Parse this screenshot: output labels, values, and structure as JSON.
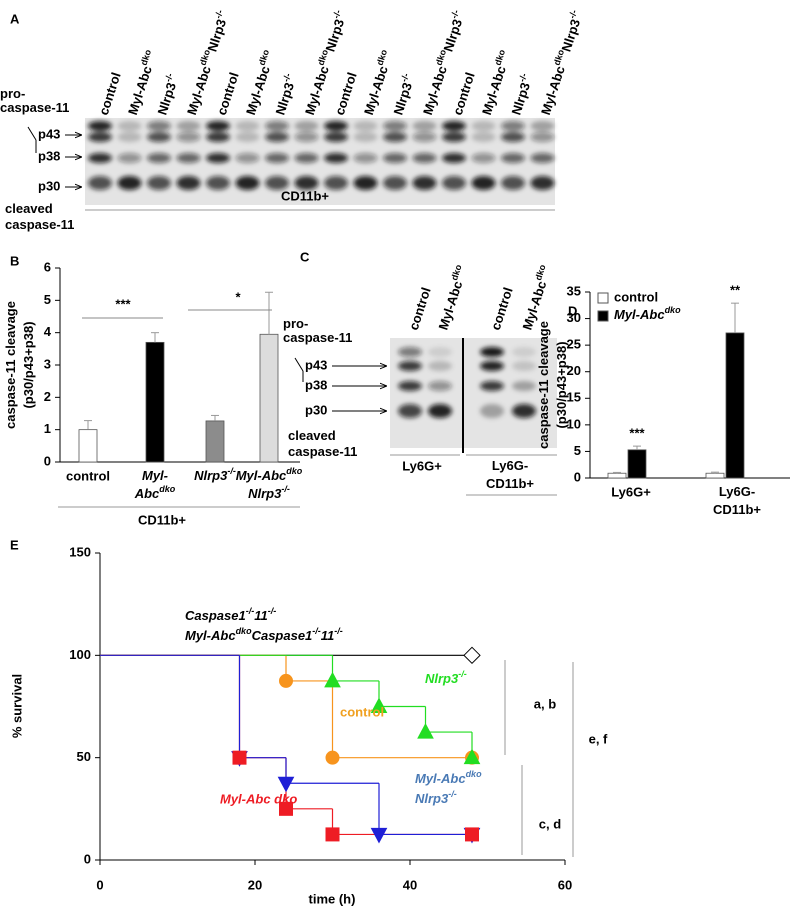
{
  "panel_a": {
    "label": "A",
    "lanes": [
      "control",
      [
        "Myl-Abc",
        "dko"
      ],
      [
        "Nlrp3",
        "-/-"
      ],
      [
        "Myl-Abc",
        "dko",
        "Nlrp3",
        "-/-"
      ],
      "control",
      [
        "Myl-Abc",
        "dko"
      ],
      [
        "Nlrp3",
        "-/-"
      ],
      [
        "Myl-Abc",
        "dko",
        "Nlrp3",
        "-/-"
      ],
      "control",
      [
        "Myl-Abc",
        "dko"
      ],
      [
        "Nlrp3",
        "-/-"
      ],
      [
        "Myl-Abc",
        "dko",
        "Nlrp3",
        "-/-"
      ],
      "control",
      [
        "Myl-Abc",
        "dko"
      ],
      [
        "Nlrp3",
        "-/-"
      ],
      [
        "Myl-Abc",
        "dko",
        "Nlrp3",
        "-/-"
      ]
    ],
    "pro": [
      [
        "pro-"
      ],
      [
        "caspase-11"
      ]
    ],
    "p43": "p43",
    "p38": "p38",
    "p30": "p30",
    "cleaved": [
      [
        "cleaved"
      ],
      [
        "caspase-11"
      ]
    ],
    "group": "CD11b+"
  },
  "panel_c": {
    "label": "C",
    "lanes": [
      "control",
      [
        "Myl-Abc",
        "dko"
      ],
      "control",
      [
        "Myl-Abc",
        "dko"
      ]
    ],
    "pro": [
      [
        "pro-"
      ],
      [
        "caspase-11"
      ]
    ],
    "p43": "p43",
    "p38": "p38",
    "p30": "p30",
    "cleaved": [
      [
        "cleaved"
      ],
      [
        "caspase-11"
      ]
    ],
    "groups": [
      "Ly6G+",
      [
        [
          "Ly6G-"
        ],
        [
          "CD11b+"
        ]
      ]
    ]
  },
  "chart_data": [
    {
      "type": "bar",
      "panel": "B",
      "ylabel": [
        [
          "caspase-11 cleavage"
        ],
        [
          "(p30/p43+p38)"
        ]
      ],
      "categories": [
        "control",
        [
          [
            "Myl-"
          ],
          [
            "Abc",
            "dko"
          ]
        ],
        [
          "Nlrp3",
          "-/-"
        ],
        [
          [
            "Myl-Abc",
            "dko"
          ],
          [
            "Nlrp3",
            "-/-"
          ]
        ]
      ],
      "values": [
        1.0,
        3.7,
        1.27,
        3.95
      ],
      "errors": [
        0.28,
        0.3,
        0.17,
        1.3
      ],
      "colors": [
        "#ffffff",
        "#000000",
        "#8c8c8c",
        "#dcdcdc"
      ],
      "ylim": [
        0,
        6
      ],
      "yticks": [
        0,
        1,
        2,
        3,
        4,
        5,
        6
      ],
      "group_label": "CD11b+",
      "significance": [
        "***",
        "*"
      ]
    },
    {
      "type": "grouped-bar",
      "panel": "D",
      "ylabel": [
        [
          "caspase-11 cleavage"
        ],
        [
          "(p30/p43+p38)"
        ]
      ],
      "categories": [
        "Ly6G+",
        [
          [
            "Ly6G-"
          ],
          [
            "CD11b+"
          ]
        ]
      ],
      "series": [
        {
          "name": "control",
          "color": "#ffffff",
          "values": [
            0.9,
            0.9
          ],
          "errors": [
            0.15,
            0.2
          ]
        },
        {
          "name": [
            "Myl-Abc",
            "dko"
          ],
          "color": "#000000",
          "values": [
            5.3,
            27.3
          ],
          "errors": [
            0.7,
            5.6
          ]
        }
      ],
      "significance": [
        "***",
        "**"
      ],
      "ylim": [
        0,
        35
      ],
      "yticks": [
        0,
        5,
        10,
        15,
        20,
        25,
        30,
        35
      ],
      "legend": "top-left"
    },
    {
      "type": "step",
      "panel": "E",
      "xlabel": "time (h)",
      "ylabel": "% survival",
      "xlim": [
        0,
        60
      ],
      "ylim": [
        0,
        150
      ],
      "xticks": [
        0,
        20,
        40,
        60
      ],
      "yticks": [
        0,
        50,
        100,
        150
      ],
      "series": [
        {
          "name": [
            [
              "Caspase1",
              "-/-",
              "11",
              "-/-"
            ],
            [
              "Myl-Abc",
              "dko",
              "Caspase1",
              "-/-",
              "11",
              "-/-"
            ]
          ],
          "color": "#000000",
          "label_color": "#000000",
          "marker": "diamond",
          "x": [
            0,
            48
          ],
          "values": [
            100,
            100
          ]
        },
        {
          "name": "control",
          "color": "#f7941d",
          "label_color": "#f0a020",
          "marker": "circle",
          "x": [
            0,
            24,
            30,
            48
          ],
          "values": [
            100,
            87.5,
            50,
            50
          ]
        },
        {
          "name": [
            "Nlrp3",
            "-/-"
          ],
          "color": "#22dd22",
          "label_color": "#22dd22",
          "marker": "triangle",
          "x": [
            0,
            30,
            36,
            42,
            48
          ],
          "values": [
            100,
            87.5,
            75,
            62.5,
            50
          ]
        },
        {
          "name": "Myl-Abc dko",
          "color": "#ee1c24",
          "label_color": "#ee1c24",
          "marker": "square",
          "x": [
            0,
            18,
            24,
            30,
            48
          ],
          "values": [
            100,
            50,
            25,
            12.5,
            12.5
          ]
        },
        {
          "name": [
            [
              "Myl-Abc",
              "dko"
            ],
            [
              "Nlrp3",
              "-/-"
            ]
          ],
          "color": "#1f1fd6",
          "label_color": "#4a7ab5",
          "marker": "triangle-down",
          "x": [
            0,
            18,
            24,
            36,
            48
          ],
          "values": [
            100,
            50,
            37.5,
            12.5,
            12.5
          ]
        }
      ],
      "brackets": [
        "a, b",
        "c, d",
        "e, f"
      ]
    }
  ]
}
